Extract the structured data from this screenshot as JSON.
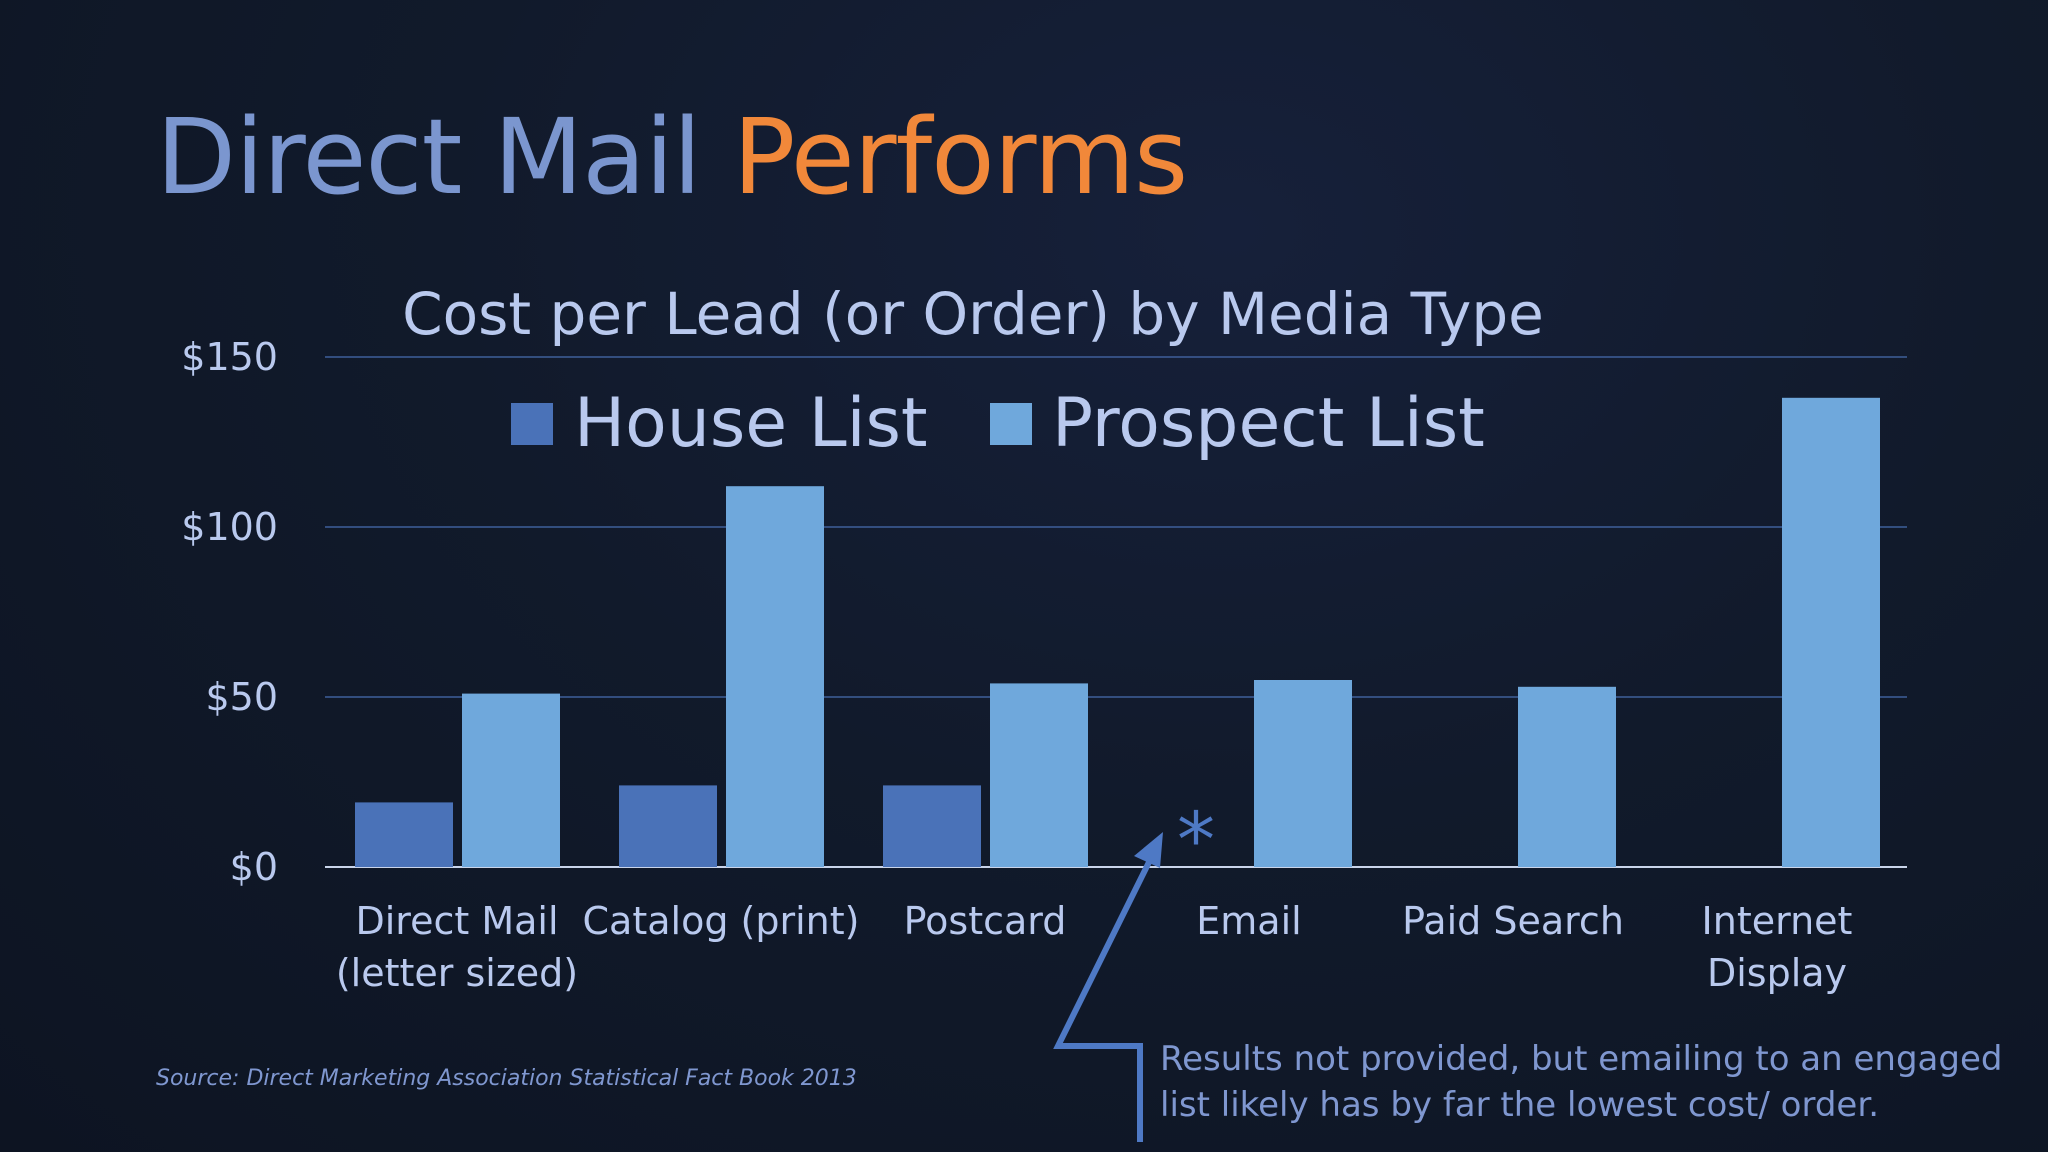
{
  "slide": {
    "title_part1": "Direct Mail",
    "title_part2": "Performs",
    "source": "Source: Direct Marketing Association Statistical Fact Book 2013",
    "note": "Results not provided, but emailing to an engaged list  likely has by far the lowest cost/ order.",
    "asterisk": "*",
    "colors": {
      "background": "#111a2b",
      "title_primary": "#7b96cf",
      "title_accent": "#f1883a",
      "house_list": "#4a72b8",
      "prospect_list": "#6fa8dc",
      "gridline": "#3e5f9a",
      "text": "#b9c9ee",
      "annotation": "#4e79c5"
    }
  },
  "chart_data": {
    "type": "bar",
    "title": "Cost per Lead (or Order) by Media Type",
    "categories": [
      [
        "Direct Mail",
        "(letter sized)"
      ],
      [
        "Catalog (print)"
      ],
      [
        "Postcard"
      ],
      [
        "Email"
      ],
      [
        "Paid Search"
      ],
      [
        "Internet",
        "Display"
      ]
    ],
    "series": [
      {
        "name": "House List",
        "color": "#4a72b8",
        "values": [
          19,
          24,
          24,
          null,
          null,
          null
        ]
      },
      {
        "name": "Prospect List",
        "color": "#6fa8dc",
        "values": [
          51,
          112,
          54,
          55,
          53,
          138
        ]
      }
    ],
    "y_ticks": [
      {
        "value": 0,
        "label": "$0"
      },
      {
        "value": 50,
        "label": "$50"
      },
      {
        "value": 100,
        "label": "$100"
      },
      {
        "value": 150,
        "label": "$150"
      }
    ],
    "ylim": [
      0,
      150
    ],
    "grid": true,
    "legend_position": "top"
  }
}
